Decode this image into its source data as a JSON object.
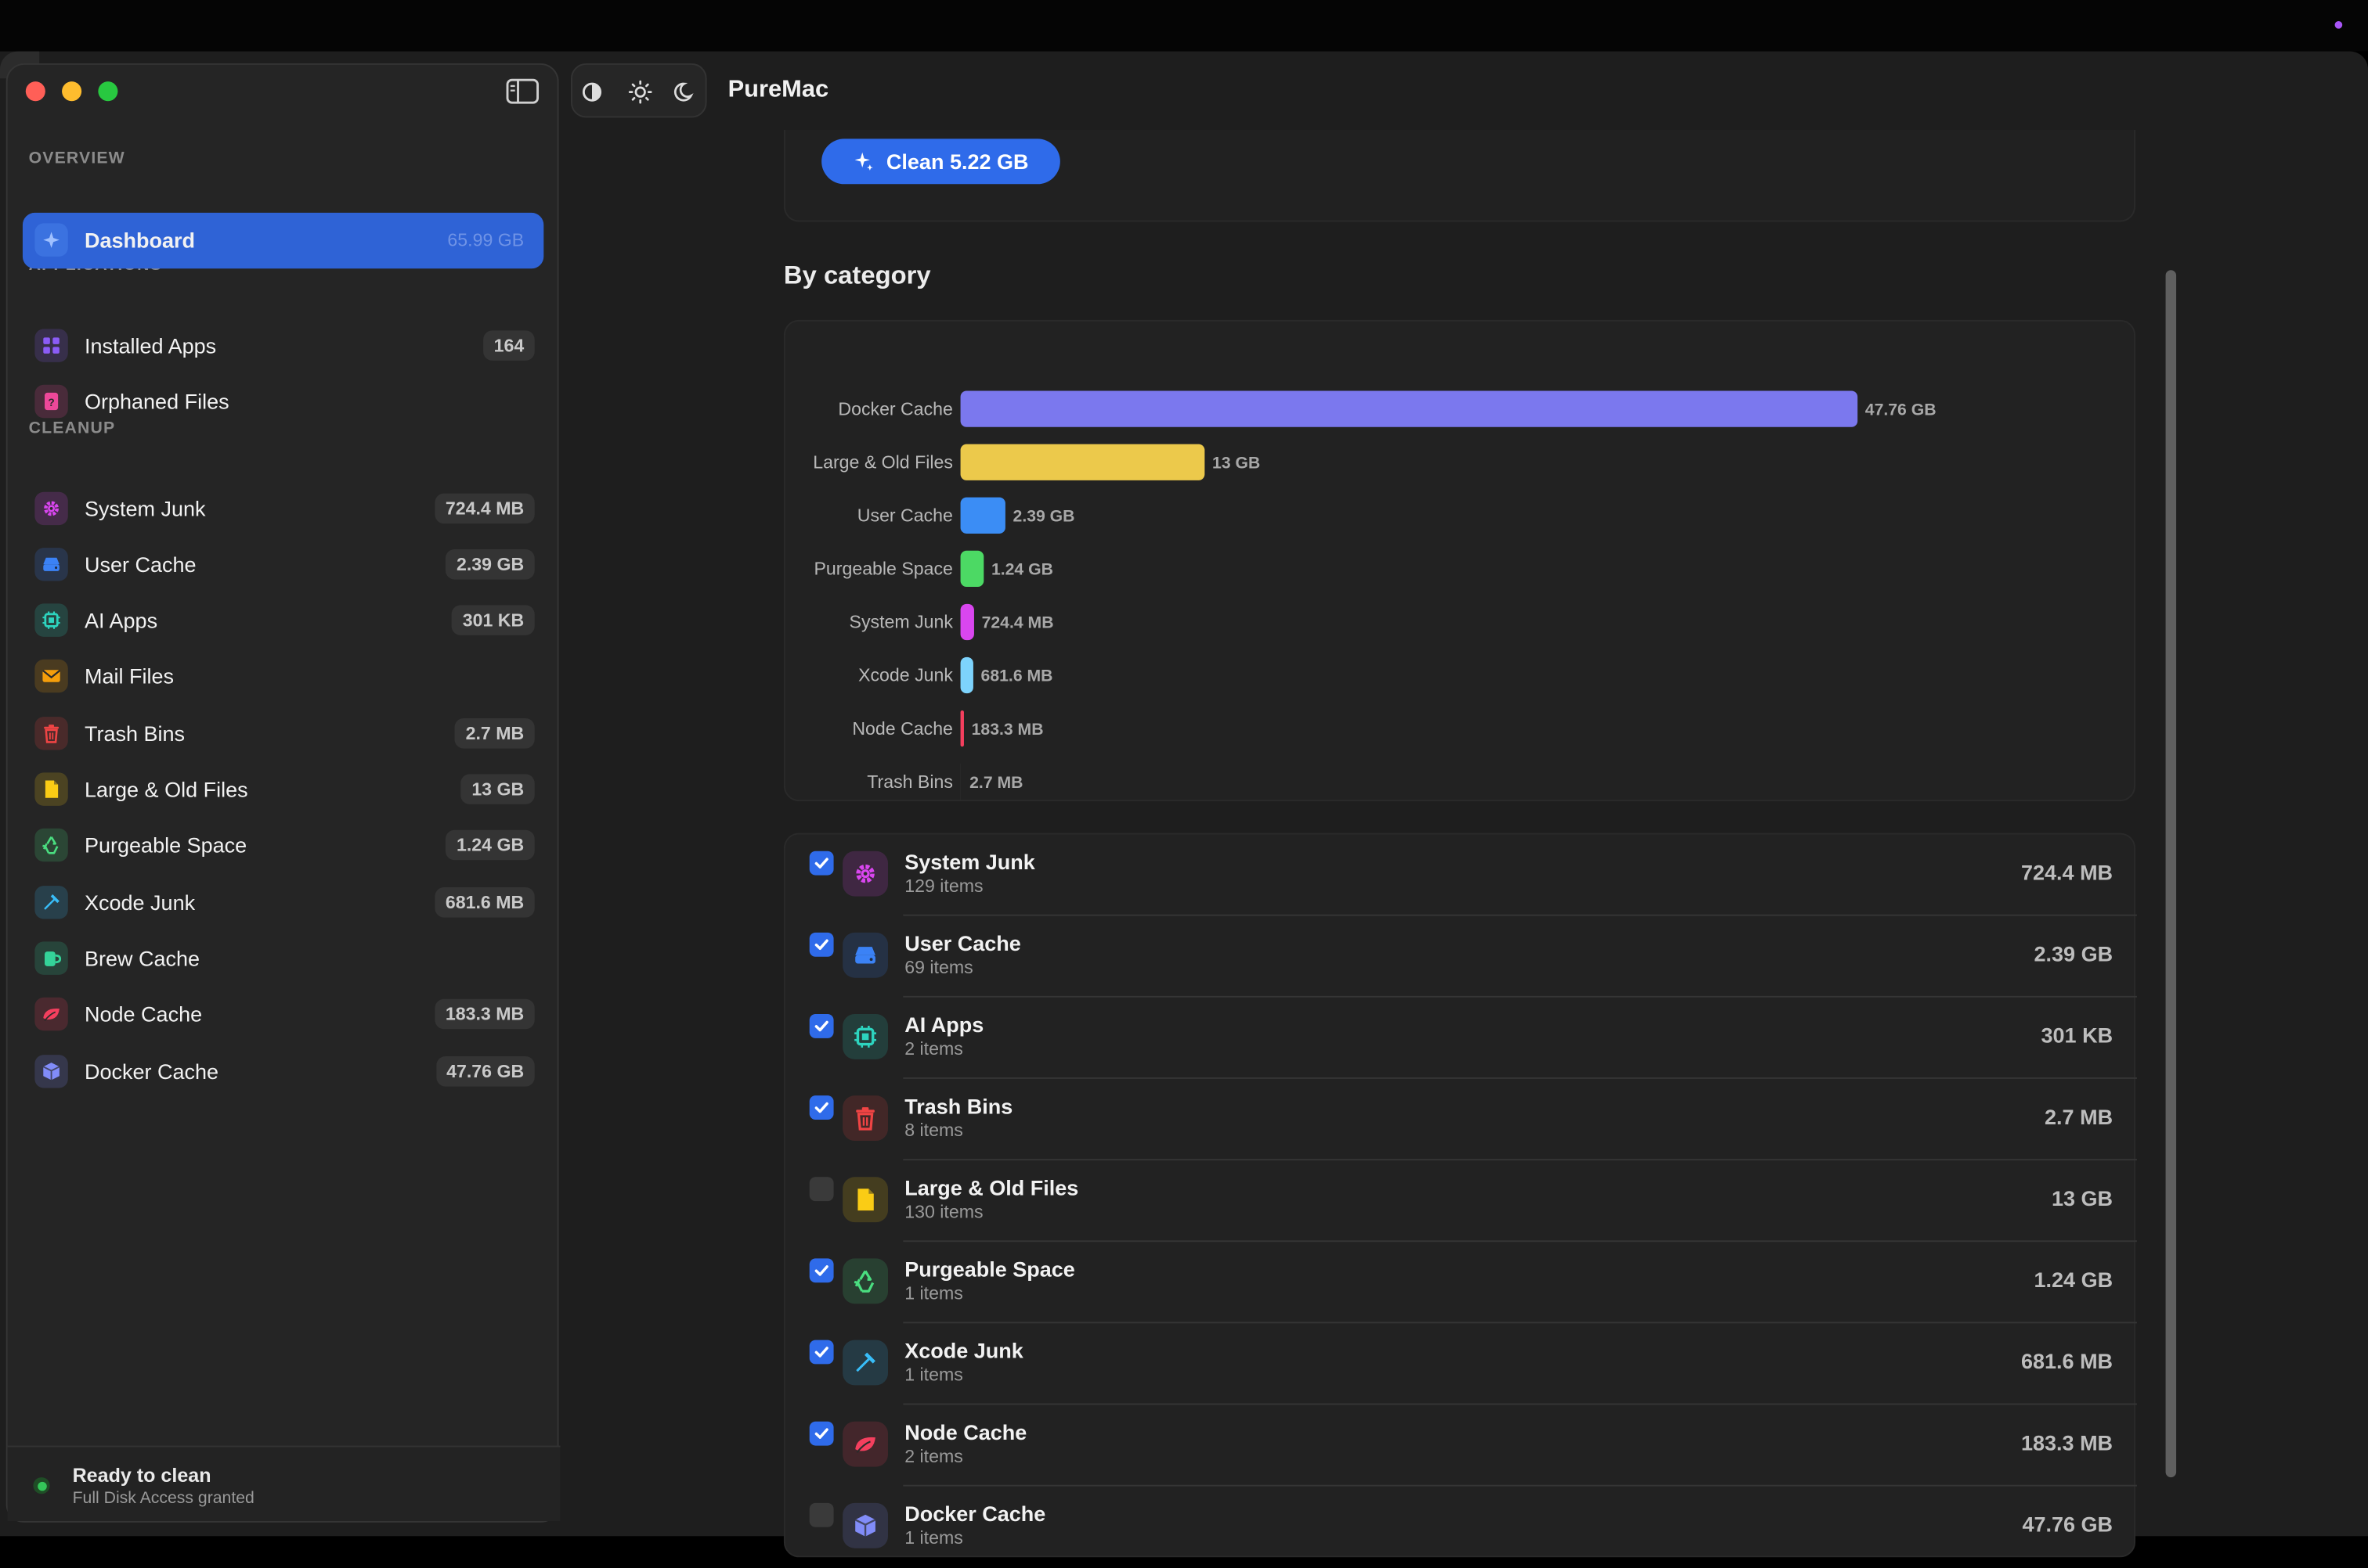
{
  "app": {
    "title": "PureMac"
  },
  "sidebar": {
    "sections": {
      "overview": "OVERVIEW",
      "applications": "APPLICATIONS",
      "cleanup": "CLEANUP"
    },
    "items": [
      {
        "label": "Dashboard",
        "badge": "65.99 GB",
        "icon": "sparkle-icon",
        "color": "#2f63d6",
        "active": true
      },
      {
        "label": "Installed Apps",
        "badge": "164",
        "icon": "grid-icon",
        "color": "#8b5cf6"
      },
      {
        "label": "Orphaned Files",
        "badge": "",
        "icon": "file-question-icon",
        "color": "#ec4899"
      },
      {
        "label": "System Junk",
        "badge": "724.4 MB",
        "icon": "gear-icon",
        "color": "#d946ef"
      },
      {
        "label": "User Cache",
        "badge": "2.39 GB",
        "icon": "drive-icon",
        "color": "#3b82f6"
      },
      {
        "label": "AI Apps",
        "badge": "301 KB",
        "icon": "chip-icon",
        "color": "#2dd4bf"
      },
      {
        "label": "Mail Files",
        "badge": "",
        "icon": "envelope-icon",
        "color": "#f59e0b"
      },
      {
        "label": "Trash Bins",
        "badge": "2.7 MB",
        "icon": "trash-icon",
        "color": "#ef4444"
      },
      {
        "label": "Large & Old Files",
        "badge": "13 GB",
        "icon": "document-icon",
        "color": "#facc15"
      },
      {
        "label": "Purgeable Space",
        "badge": "1.24 GB",
        "icon": "recycle-icon",
        "color": "#4ade80"
      },
      {
        "label": "Xcode Junk",
        "badge": "681.6 MB",
        "icon": "hammer-icon",
        "color": "#38bdf8"
      },
      {
        "label": "Brew Cache",
        "badge": "",
        "icon": "mug-icon",
        "color": "#34d399"
      },
      {
        "label": "Node Cache",
        "badge": "183.3 MB",
        "icon": "leaf-icon",
        "color": "#f43f5e"
      },
      {
        "label": "Docker Cache",
        "badge": "47.76 GB",
        "icon": "cube-icon",
        "color": "#818cf8"
      }
    ],
    "footer": {
      "title": "Ready to clean",
      "subtitle": "Full Disk Access granted"
    }
  },
  "theme_buttons": [
    "contrast-icon",
    "sun-icon",
    "moon-icon"
  ],
  "main": {
    "clean_button": "Clean 5.22 GB",
    "by_category_title": "By category"
  },
  "chart_data": {
    "type": "bar",
    "orientation": "horizontal",
    "unit": "MB",
    "categories": [
      "Docker Cache",
      "Large & Old Files",
      "User Cache",
      "Purgeable Space",
      "System Junk",
      "Xcode Junk",
      "Node Cache",
      "Trash Bins"
    ],
    "values": [
      47760,
      13000,
      2390,
      1240,
      724.4,
      681.6,
      183.3,
      2.7
    ],
    "labels": [
      "47.76 GB",
      "13 GB",
      "2.39 GB",
      "1.24 GB",
      "724.4 MB",
      "681.6 MB",
      "183.3 MB",
      "2.7 MB"
    ],
    "colors": [
      "#7b78ee",
      "#ecc94b",
      "#3b8df5",
      "#4cd964",
      "#d946ef",
      "#7dd3fc",
      "#f43f5e",
      "#777777"
    ],
    "grid": false,
    "legend": "none"
  },
  "categories": [
    {
      "name": "System Junk",
      "items": "129 items",
      "size": "724.4 MB",
      "checked": true,
      "icon": "gear-icon",
      "color": "#d946ef"
    },
    {
      "name": "User Cache",
      "items": "69 items",
      "size": "2.39 GB",
      "checked": true,
      "icon": "drive-icon",
      "color": "#3b82f6"
    },
    {
      "name": "AI Apps",
      "items": "2 items",
      "size": "301 KB",
      "checked": true,
      "icon": "chip-icon",
      "color": "#2dd4bf"
    },
    {
      "name": "Trash Bins",
      "items": "8 items",
      "size": "2.7 MB",
      "checked": true,
      "icon": "trash-icon",
      "color": "#ef4444"
    },
    {
      "name": "Large & Old Files",
      "items": "130 items",
      "size": "13 GB",
      "checked": false,
      "icon": "document-icon",
      "color": "#facc15"
    },
    {
      "name": "Purgeable Space",
      "items": "1 items",
      "size": "1.24 GB",
      "checked": true,
      "icon": "recycle-icon",
      "color": "#4ade80"
    },
    {
      "name": "Xcode Junk",
      "items": "1 items",
      "size": "681.6 MB",
      "checked": true,
      "icon": "hammer-icon",
      "color": "#38bdf8"
    },
    {
      "name": "Node Cache",
      "items": "2 items",
      "size": "183.3 MB",
      "checked": true,
      "icon": "leaf-icon",
      "color": "#f43f5e"
    },
    {
      "name": "Docker Cache",
      "items": "1 items",
      "size": "47.76 GB",
      "checked": false,
      "icon": "cube-icon",
      "color": "#818cf8"
    }
  ]
}
